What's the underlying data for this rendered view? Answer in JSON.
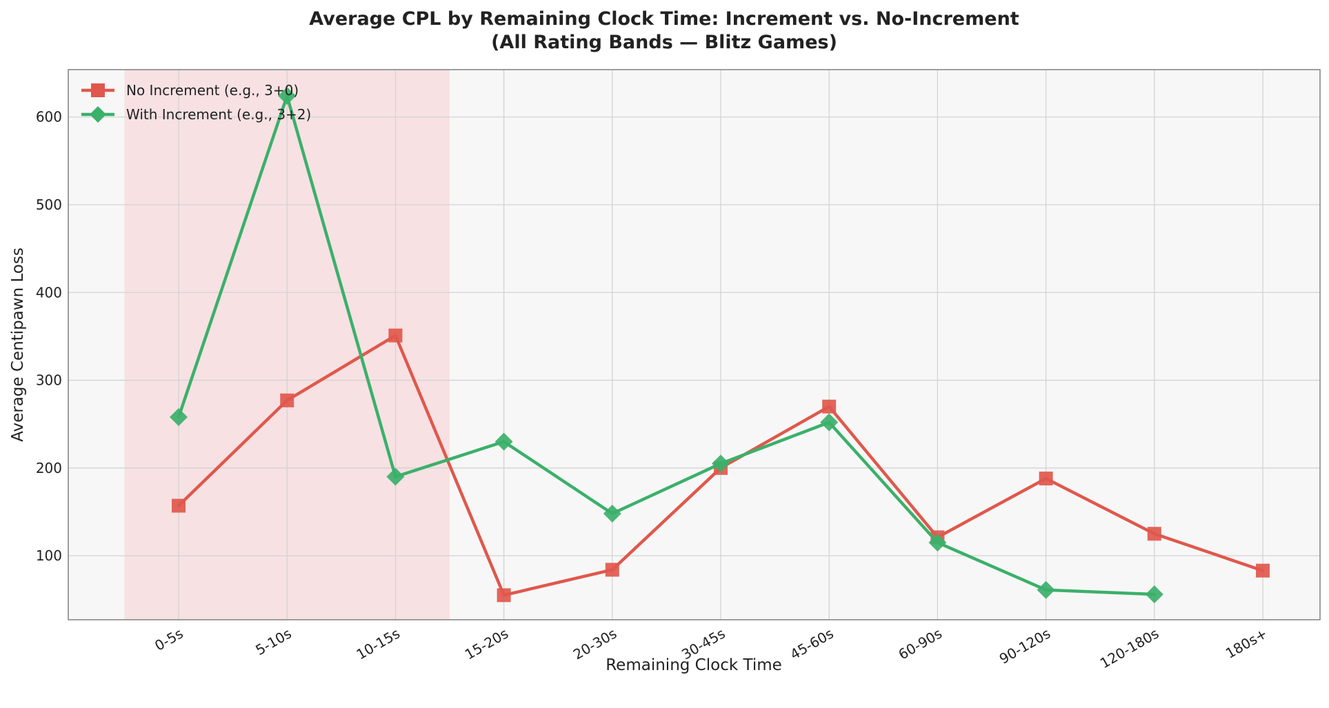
{
  "chart_data": {
    "type": "line",
    "title": "Average CPL by Remaining Clock Time: Increment vs. No-Increment",
    "subtitle": "(All Rating Bands — Blitz Games)",
    "xlabel": "Remaining Clock Time",
    "ylabel": "Average Centipawn Loss",
    "categories": [
      "0-5s",
      "5-10s",
      "10-15s",
      "15-20s",
      "20-30s",
      "30-45s",
      "45-60s",
      "60-90s",
      "90-120s",
      "120-180s",
      "180s+"
    ],
    "ylim": [
      27,
      654
    ],
    "yticks": [
      100,
      200,
      300,
      400,
      500,
      600
    ],
    "grid": true,
    "legend_position": "top-left",
    "highlight_region": {
      "from_category": "0-5s",
      "to_category": "10-15s",
      "color": "#f7d9dc"
    },
    "series": [
      {
        "name": "No Increment (e.g., 3+0)",
        "color": "#e0584c",
        "marker": "square",
        "values": [
          157,
          277,
          351,
          55,
          84,
          200,
          270,
          121,
          188,
          125,
          83
        ]
      },
      {
        "name": "With Increment (e.g., 3+2)",
        "color": "#3bb06a",
        "marker": "diamond",
        "values": [
          258,
          624,
          190,
          230,
          148,
          205,
          252,
          115,
          61,
          56,
          null
        ]
      }
    ]
  }
}
